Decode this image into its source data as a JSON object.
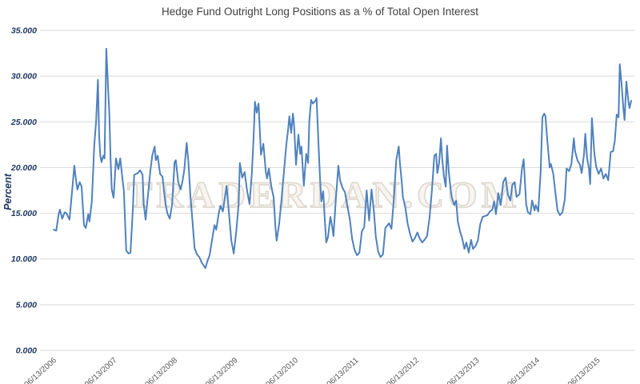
{
  "colors": {
    "line": "#4F81BD",
    "grid": "#D9D9D9",
    "title_text": "#404040",
    "y_label_text": "#1F3864",
    "x_label_text": "#595959",
    "watermark_stroke": "#DFD9D0",
    "watermark_fill": "#F8F5F0"
  },
  "chart_data": {
    "type": "line",
    "title": "Hedge Fund Outright Long Positions as a % of Total Open Interest",
    "ylabel": "Percent",
    "xlabel": "",
    "watermark": "TRADERDAN.COM",
    "grid": "horizontal",
    "legend": "none",
    "ylim": [
      0,
      35
    ],
    "y_tick_values": [
      0,
      5,
      10,
      15,
      20,
      25,
      30,
      35
    ],
    "y_tick_labels": [
      "0.000",
      "5.000",
      "10.000",
      "15.000",
      "20.000",
      "25.000",
      "30.000",
      "35.000"
    ],
    "x_tick_years": [
      2006.45,
      2007.45,
      2008.45,
      2009.45,
      2010.45,
      2011.45,
      2012.45,
      2013.45,
      2014.45,
      2015.45
    ],
    "x_tick_labels": [
      "06/13/2006",
      "06/13/2007",
      "06/13/2008",
      "06/13/2009",
      "06/13/2010",
      "06/13/2011",
      "06/13/2012",
      "06/13/2013",
      "06/13/2014",
      "06/13/2015"
    ],
    "series": [
      {
        "name": "Hedge Fund Outright Long Positions as a % of Total Open Interest",
        "x_unit": "decimal_year",
        "y_unit": "percent",
        "points": [
          [
            2006.44,
            13.2
          ],
          [
            2006.48,
            13.1
          ],
          [
            2006.52,
            14.9
          ],
          [
            2006.54,
            15.4
          ],
          [
            2006.58,
            14.4
          ],
          [
            2006.62,
            15.1
          ],
          [
            2006.65,
            15.0
          ],
          [
            2006.7,
            14.3
          ],
          [
            2006.74,
            17.2
          ],
          [
            2006.78,
            20.2
          ],
          [
            2006.81,
            18.5
          ],
          [
            2006.83,
            17.6
          ],
          [
            2006.87,
            18.4
          ],
          [
            2006.9,
            17.9
          ],
          [
            2006.94,
            13.7
          ],
          [
            2006.97,
            13.4
          ],
          [
            2007.01,
            14.9
          ],
          [
            2007.03,
            14.1
          ],
          [
            2007.07,
            16.3
          ],
          [
            2007.11,
            22.4
          ],
          [
            2007.14,
            25.0
          ],
          [
            2007.17,
            29.6
          ],
          [
            2007.19,
            23.5
          ],
          [
            2007.21,
            21.3
          ],
          [
            2007.23,
            20.6
          ],
          [
            2007.26,
            21.3
          ],
          [
            2007.28,
            21.0
          ],
          [
            2007.31,
            33.0
          ],
          [
            2007.34,
            28.5
          ],
          [
            2007.36,
            25.8
          ],
          [
            2007.38,
            21.0
          ],
          [
            2007.4,
            17.6
          ],
          [
            2007.43,
            16.7
          ],
          [
            2007.47,
            21.0
          ],
          [
            2007.51,
            19.8
          ],
          [
            2007.54,
            21.0
          ],
          [
            2007.58,
            18.6
          ],
          [
            2007.6,
            17.5
          ],
          [
            2007.64,
            10.9
          ],
          [
            2007.68,
            10.6
          ],
          [
            2007.71,
            10.7
          ],
          [
            2007.75,
            15.5
          ],
          [
            2007.77,
            19.2
          ],
          [
            2007.83,
            19.4
          ],
          [
            2007.87,
            19.7
          ],
          [
            2007.91,
            19.2
          ],
          [
            2007.93,
            16.0
          ],
          [
            2007.96,
            14.3
          ],
          [
            2008.0,
            17.0
          ],
          [
            2008.04,
            19.7
          ],
          [
            2008.07,
            21.3
          ],
          [
            2008.11,
            22.3
          ],
          [
            2008.13,
            20.8
          ],
          [
            2008.16,
            21.3
          ],
          [
            2008.2,
            19.3
          ],
          [
            2008.24,
            19.0
          ],
          [
            2008.29,
            16.0
          ],
          [
            2008.32,
            15.0
          ],
          [
            2008.36,
            14.4
          ],
          [
            2008.4,
            16.0
          ],
          [
            2008.44,
            20.6
          ],
          [
            2008.46,
            20.8
          ],
          [
            2008.5,
            18.4
          ],
          [
            2008.54,
            17.6
          ],
          [
            2008.57,
            18.5
          ],
          [
            2008.6,
            19.7
          ],
          [
            2008.64,
            22.7
          ],
          [
            2008.67,
            20.5
          ],
          [
            2008.7,
            17.0
          ],
          [
            2008.73,
            14.7
          ],
          [
            2008.77,
            11.2
          ],
          [
            2008.81,
            10.5
          ],
          [
            2008.85,
            10.2
          ],
          [
            2008.89,
            9.6
          ],
          [
            2008.93,
            9.2
          ],
          [
            2008.95,
            9.0
          ],
          [
            2008.98,
            9.7
          ],
          [
            2009.02,
            10.4
          ],
          [
            2009.06,
            12.1
          ],
          [
            2009.1,
            13.7
          ],
          [
            2009.13,
            13.2
          ],
          [
            2009.17,
            15.0
          ],
          [
            2009.2,
            15.8
          ],
          [
            2009.24,
            15.2
          ],
          [
            2009.3,
            18.0
          ],
          [
            2009.34,
            15.0
          ],
          [
            2009.38,
            12.0
          ],
          [
            2009.42,
            10.6
          ],
          [
            2009.46,
            13.0
          ],
          [
            2009.5,
            16.0
          ],
          [
            2009.52,
            20.5
          ],
          [
            2009.56,
            18.9
          ],
          [
            2009.6,
            19.5
          ],
          [
            2009.64,
            17.5
          ],
          [
            2009.68,
            16.0
          ],
          [
            2009.72,
            19.5
          ],
          [
            2009.75,
            23.5
          ],
          [
            2009.77,
            27.2
          ],
          [
            2009.8,
            26.0
          ],
          [
            2009.83,
            27.0
          ],
          [
            2009.87,
            21.4
          ],
          [
            2009.91,
            22.6
          ],
          [
            2009.95,
            19.5
          ],
          [
            2009.97,
            18.8
          ],
          [
            2010.0,
            19.9
          ],
          [
            2010.04,
            18.0
          ],
          [
            2010.08,
            16.7
          ],
          [
            2010.11,
            13.5
          ],
          [
            2010.13,
            12.0
          ],
          [
            2010.17,
            13.8
          ],
          [
            2010.21,
            16.5
          ],
          [
            2010.25,
            19.5
          ],
          [
            2010.29,
            22.5
          ],
          [
            2010.32,
            24.2
          ],
          [
            2010.34,
            25.6
          ],
          [
            2010.37,
            23.8
          ],
          [
            2010.4,
            25.9
          ],
          [
            2010.42,
            24.5
          ],
          [
            2010.45,
            20.3
          ],
          [
            2010.49,
            23.6
          ],
          [
            2010.52,
            21.5
          ],
          [
            2010.54,
            22.3
          ],
          [
            2010.58,
            18.0
          ],
          [
            2010.62,
            21.5
          ],
          [
            2010.65,
            20.5
          ],
          [
            2010.67,
            25.0
          ],
          [
            2010.7,
            27.4
          ],
          [
            2010.73,
            27.0
          ],
          [
            2010.77,
            27.3
          ],
          [
            2010.79,
            27.6
          ],
          [
            2010.82,
            23.0
          ],
          [
            2010.85,
            18.5
          ],
          [
            2010.87,
            16.3
          ],
          [
            2010.9,
            17.4
          ],
          [
            2010.93,
            14.0
          ],
          [
            2010.95,
            11.8
          ],
          [
            2010.98,
            12.4
          ],
          [
            2011.02,
            14.6
          ],
          [
            2011.05,
            13.5
          ],
          [
            2011.07,
            12.5
          ],
          [
            2011.11,
            16.5
          ],
          [
            2011.15,
            20.2
          ],
          [
            2011.18,
            18.6
          ],
          [
            2011.22,
            17.8
          ],
          [
            2011.26,
            17.3
          ],
          [
            2011.3,
            15.8
          ],
          [
            2011.34,
            14.4
          ],
          [
            2011.38,
            12.2
          ],
          [
            2011.42,
            11.0
          ],
          [
            2011.46,
            10.4
          ],
          [
            2011.5,
            10.7
          ],
          [
            2011.54,
            13.0
          ],
          [
            2011.58,
            13.5
          ],
          [
            2011.62,
            17.5
          ],
          [
            2011.66,
            14.2
          ],
          [
            2011.7,
            17.6
          ],
          [
            2011.74,
            15.2
          ],
          [
            2011.77,
            12.5
          ],
          [
            2011.81,
            10.8
          ],
          [
            2011.85,
            10.2
          ],
          [
            2011.89,
            10.5
          ],
          [
            2011.93,
            13.4
          ],
          [
            2011.99,
            13.9
          ],
          [
            2012.03,
            13.3
          ],
          [
            2012.07,
            16.5
          ],
          [
            2012.11,
            20.8
          ],
          [
            2012.15,
            22.3
          ],
          [
            2012.17,
            20.5
          ],
          [
            2012.2,
            18.5
          ],
          [
            2012.22,
            16.8
          ],
          [
            2012.26,
            15.6
          ],
          [
            2012.3,
            13.8
          ],
          [
            2012.34,
            12.7
          ],
          [
            2012.38,
            11.9
          ],
          [
            2012.42,
            12.3
          ],
          [
            2012.46,
            12.9
          ],
          [
            2012.5,
            12.2
          ],
          [
            2012.54,
            11.8
          ],
          [
            2012.58,
            12.1
          ],
          [
            2012.62,
            12.5
          ],
          [
            2012.66,
            14.5
          ],
          [
            2012.7,
            17.5
          ],
          [
            2012.74,
            21.3
          ],
          [
            2012.77,
            21.5
          ],
          [
            2012.79,
            19.4
          ],
          [
            2012.82,
            20.5
          ],
          [
            2012.85,
            23.2
          ],
          [
            2012.87,
            21.0
          ],
          [
            2012.9,
            19.0
          ],
          [
            2012.93,
            17.9
          ],
          [
            2012.95,
            22.4
          ],
          [
            2012.98,
            19.5
          ],
          [
            2013.01,
            17.6
          ],
          [
            2013.03,
            16.7
          ],
          [
            2013.07,
            15.9
          ],
          [
            2013.1,
            16.4
          ],
          [
            2013.13,
            14.1
          ],
          [
            2013.17,
            12.9
          ],
          [
            2013.2,
            12.3
          ],
          [
            2013.24,
            11.1
          ],
          [
            2013.27,
            11.8
          ],
          [
            2013.31,
            10.7
          ],
          [
            2013.35,
            12.1
          ],
          [
            2013.38,
            11.1
          ],
          [
            2013.42,
            11.4
          ],
          [
            2013.46,
            12.0
          ],
          [
            2013.5,
            13.8
          ],
          [
            2013.54,
            14.6
          ],
          [
            2013.58,
            14.7
          ],
          [
            2013.62,
            14.8
          ],
          [
            2013.66,
            15.2
          ],
          [
            2013.7,
            15.4
          ],
          [
            2013.73,
            16.3
          ],
          [
            2013.76,
            14.9
          ],
          [
            2013.8,
            17.2
          ],
          [
            2013.84,
            15.9
          ],
          [
            2013.88,
            18.4
          ],
          [
            2013.92,
            18.9
          ],
          [
            2013.96,
            17.0
          ],
          [
            2014.0,
            16.4
          ],
          [
            2014.03,
            18.1
          ],
          [
            2014.07,
            18.4
          ],
          [
            2014.1,
            16.8
          ],
          [
            2014.15,
            17.1
          ],
          [
            2014.19,
            19.8
          ],
          [
            2014.22,
            20.9
          ],
          [
            2014.26,
            16.0
          ],
          [
            2014.29,
            15.1
          ],
          [
            2014.33,
            14.9
          ],
          [
            2014.36,
            16.4
          ],
          [
            2014.4,
            15.3
          ],
          [
            2014.42,
            15.9
          ],
          [
            2014.46,
            15.2
          ],
          [
            2014.5,
            19.5
          ],
          [
            2014.53,
            25.5
          ],
          [
            2014.56,
            25.9
          ],
          [
            2014.58,
            25.6
          ],
          [
            2014.61,
            23.0
          ],
          [
            2014.65,
            20.0
          ],
          [
            2014.67,
            20.4
          ],
          [
            2014.71,
            19.3
          ],
          [
            2014.74,
            17.5
          ],
          [
            2014.78,
            15.3
          ],
          [
            2014.82,
            14.8
          ],
          [
            2014.86,
            15.1
          ],
          [
            2014.9,
            16.5
          ],
          [
            2014.93,
            19.9
          ],
          [
            2014.97,
            19.6
          ],
          [
            2015.01,
            20.4
          ],
          [
            2015.05,
            23.2
          ],
          [
            2015.07,
            21.8
          ],
          [
            2015.11,
            20.8
          ],
          [
            2015.15,
            20.3
          ],
          [
            2015.18,
            19.4
          ],
          [
            2015.22,
            21.5
          ],
          [
            2015.24,
            23.7
          ],
          [
            2015.27,
            21.0
          ],
          [
            2015.3,
            19.9
          ],
          [
            2015.32,
            18.2
          ],
          [
            2015.35,
            25.4
          ],
          [
            2015.39,
            21.5
          ],
          [
            2015.42,
            20.1
          ],
          [
            2015.46,
            19.3
          ],
          [
            2015.5,
            19.9
          ],
          [
            2015.54,
            18.8
          ],
          [
            2015.58,
            19.3
          ],
          [
            2015.62,
            18.6
          ],
          [
            2015.66,
            21.7
          ],
          [
            2015.7,
            21.8
          ],
          [
            2015.73,
            23.0
          ],
          [
            2015.76,
            25.8
          ],
          [
            2015.79,
            25.5
          ],
          [
            2015.81,
            31.3
          ],
          [
            2015.84,
            29.2
          ],
          [
            2015.87,
            26.5
          ],
          [
            2015.89,
            25.2
          ],
          [
            2015.92,
            29.4
          ],
          [
            2015.95,
            27.4
          ],
          [
            2015.97,
            26.5
          ],
          [
            2016.0,
            27.3
          ]
        ]
      }
    ]
  }
}
